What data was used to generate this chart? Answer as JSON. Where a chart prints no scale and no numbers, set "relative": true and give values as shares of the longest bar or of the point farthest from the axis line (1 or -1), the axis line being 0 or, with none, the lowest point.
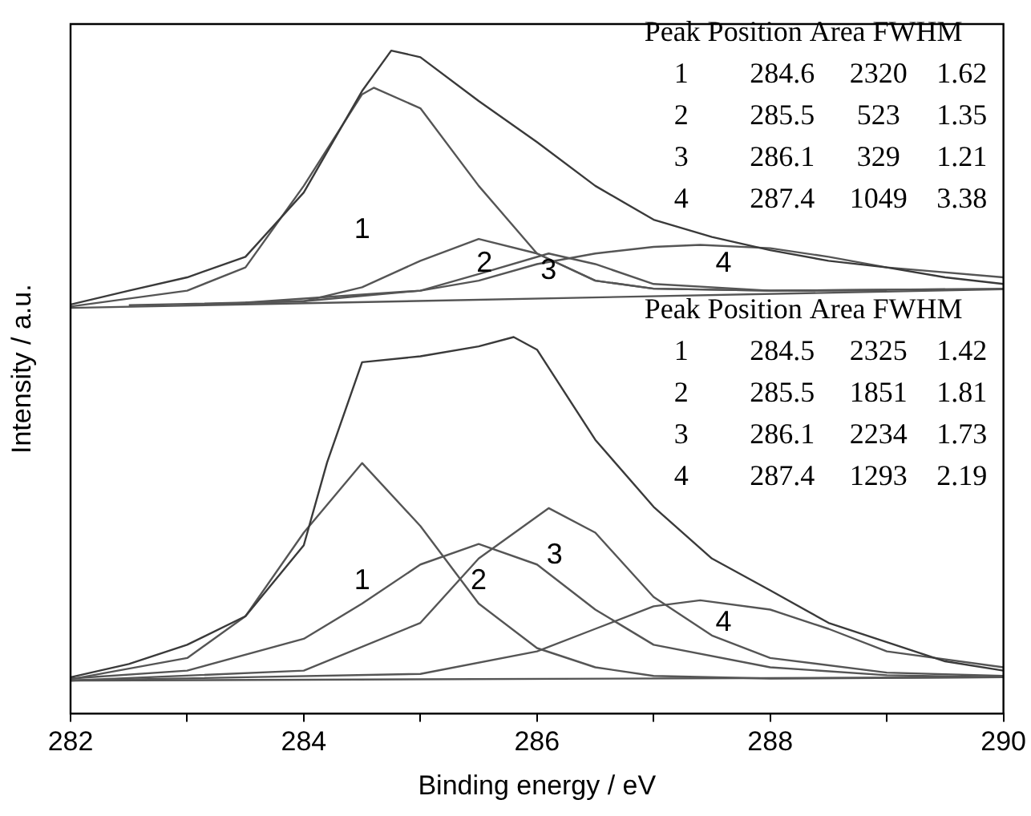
{
  "chart_data": {
    "type": "line",
    "xlabel": "Binding energy / eV",
    "ylabel": "Intensity / a.u.",
    "relative": true,
    "legend": false,
    "grid": false,
    "marker": "none",
    "line_style": "solid",
    "xlim": [
      282,
      290
    ],
    "xticks": [
      282,
      {
        "value": 283,
        "label": null
      },
      284,
      {
        "value": 285,
        "label": null
      },
      286,
      {
        "value": 287,
        "label": null
      },
      288,
      {
        "value": 289,
        "label": null
      },
      290
    ],
    "series": [
      {
        "color": "#3a3a3a",
        "x": [
          282,
          282.5,
          283,
          283.5,
          284,
          284.5,
          284.75,
          285,
          285.5,
          286,
          286.5,
          287,
          287.5,
          288,
          288.5,
          289,
          289.5,
          290
        ],
        "values": [
          0.617,
          0.638,
          0.658,
          0.689,
          0.786,
          0.939,
          1,
          0.99,
          0.924,
          0.862,
          0.796,
          0.745,
          0.719,
          0.699,
          0.683,
          0.673,
          0.658,
          0.648
        ]
      },
      {
        "color": "#555555",
        "x": [
          282,
          290
        ],
        "values": [
          0.612,
          0.64
        ]
      },
      {
        "color": "#555555",
        "x": [
          282,
          283,
          283.5,
          284,
          284.5,
          284.6,
          285,
          285.5,
          286,
          286.5,
          287,
          288,
          290
        ],
        "values": [
          0.614,
          0.638,
          0.673,
          0.796,
          0.934,
          0.944,
          0.913,
          0.796,
          0.694,
          0.653,
          0.641,
          0.638,
          0.641
        ]
      },
      {
        "color": "#555555",
        "x": [
          283,
          284,
          284.5,
          285,
          285.5,
          286,
          286.5,
          287,
          288,
          289
        ],
        "values": [
          0.617,
          0.622,
          0.643,
          0.683,
          0.716,
          0.694,
          0.653,
          0.641,
          0.638,
          0.638
        ]
      },
      {
        "color": "#555555",
        "x": [
          283.5,
          285,
          285.5,
          286.1,
          286.5,
          287,
          288,
          289.5
        ],
        "values": [
          0.62,
          0.638,
          0.663,
          0.694,
          0.678,
          0.648,
          0.638,
          0.64
        ]
      },
      {
        "color": "#555555",
        "x": [
          282.5,
          284,
          285,
          285.5,
          286,
          286.5,
          287,
          287.4,
          288,
          288.5,
          289,
          290
        ],
        "values": [
          0.616,
          0.622,
          0.638,
          0.653,
          0.678,
          0.694,
          0.704,
          0.707,
          0.702,
          0.689,
          0.673,
          0.658
        ]
      },
      {
        "color": "#3a3a3a",
        "x": [
          282,
          282.5,
          283,
          283.5,
          284,
          284.2,
          284.5,
          285,
          285.5,
          285.8,
          286,
          286.5,
          287,
          287.5,
          288,
          288.5,
          289,
          289.5,
          290
        ],
        "values": [
          0.055,
          0.075,
          0.104,
          0.147,
          0.254,
          0.379,
          0.53,
          0.539,
          0.554,
          0.568,
          0.549,
          0.413,
          0.312,
          0.234,
          0.186,
          0.137,
          0.108,
          0.079,
          0.065
        ]
      },
      {
        "color": "#555555",
        "x": [
          282,
          290
        ],
        "values": [
          0.05,
          0.055
        ]
      },
      {
        "color": "#555555",
        "x": [
          282,
          283,
          283.5,
          284,
          284.5,
          285,
          285.5,
          286,
          286.5,
          287,
          288,
          290
        ],
        "values": [
          0.052,
          0.084,
          0.147,
          0.273,
          0.378,
          0.283,
          0.166,
          0.099,
          0.07,
          0.057,
          0.053,
          0.055
        ]
      },
      {
        "color": "#555555",
        "x": [
          282,
          283,
          284,
          284.5,
          285,
          285.5,
          286,
          286.5,
          287,
          288,
          289,
          290
        ],
        "values": [
          0.053,
          0.065,
          0.113,
          0.166,
          0.225,
          0.256,
          0.225,
          0.157,
          0.104,
          0.07,
          0.058,
          0.055
        ]
      },
      {
        "color": "#555555",
        "x": [
          282,
          284,
          285,
          285.5,
          286.1,
          286.5,
          287,
          287.5,
          288,
          289,
          290
        ],
        "values": [
          0.05,
          0.065,
          0.137,
          0.234,
          0.31,
          0.273,
          0.176,
          0.118,
          0.084,
          0.062,
          0.057
        ]
      },
      {
        "color": "#555555",
        "x": [
          282,
          285,
          286,
          286.5,
          287,
          287.4,
          288,
          288.5,
          289,
          290
        ],
        "values": [
          0.05,
          0.06,
          0.094,
          0.128,
          0.162,
          0.171,
          0.157,
          0.128,
          0.094,
          0.07
        ]
      }
    ],
    "annotations": [
      "Peak Position Area FWHM",
      "1 284.6 2320 1.62",
      "2 285.5 523 1.35",
      "3 286.1 329 1.21",
      "4 287.4 1049 3.38",
      "Peak Position Area FWHM",
      "1 284.5 2325 1.42",
      "2 285.5 1851 1.81",
      "3 286.1 2234 1.73",
      "4 287.4 1293 2.19",
      "1",
      "2",
      "3",
      "4",
      "1",
      "2",
      "3",
      "4"
    ]
  }
}
